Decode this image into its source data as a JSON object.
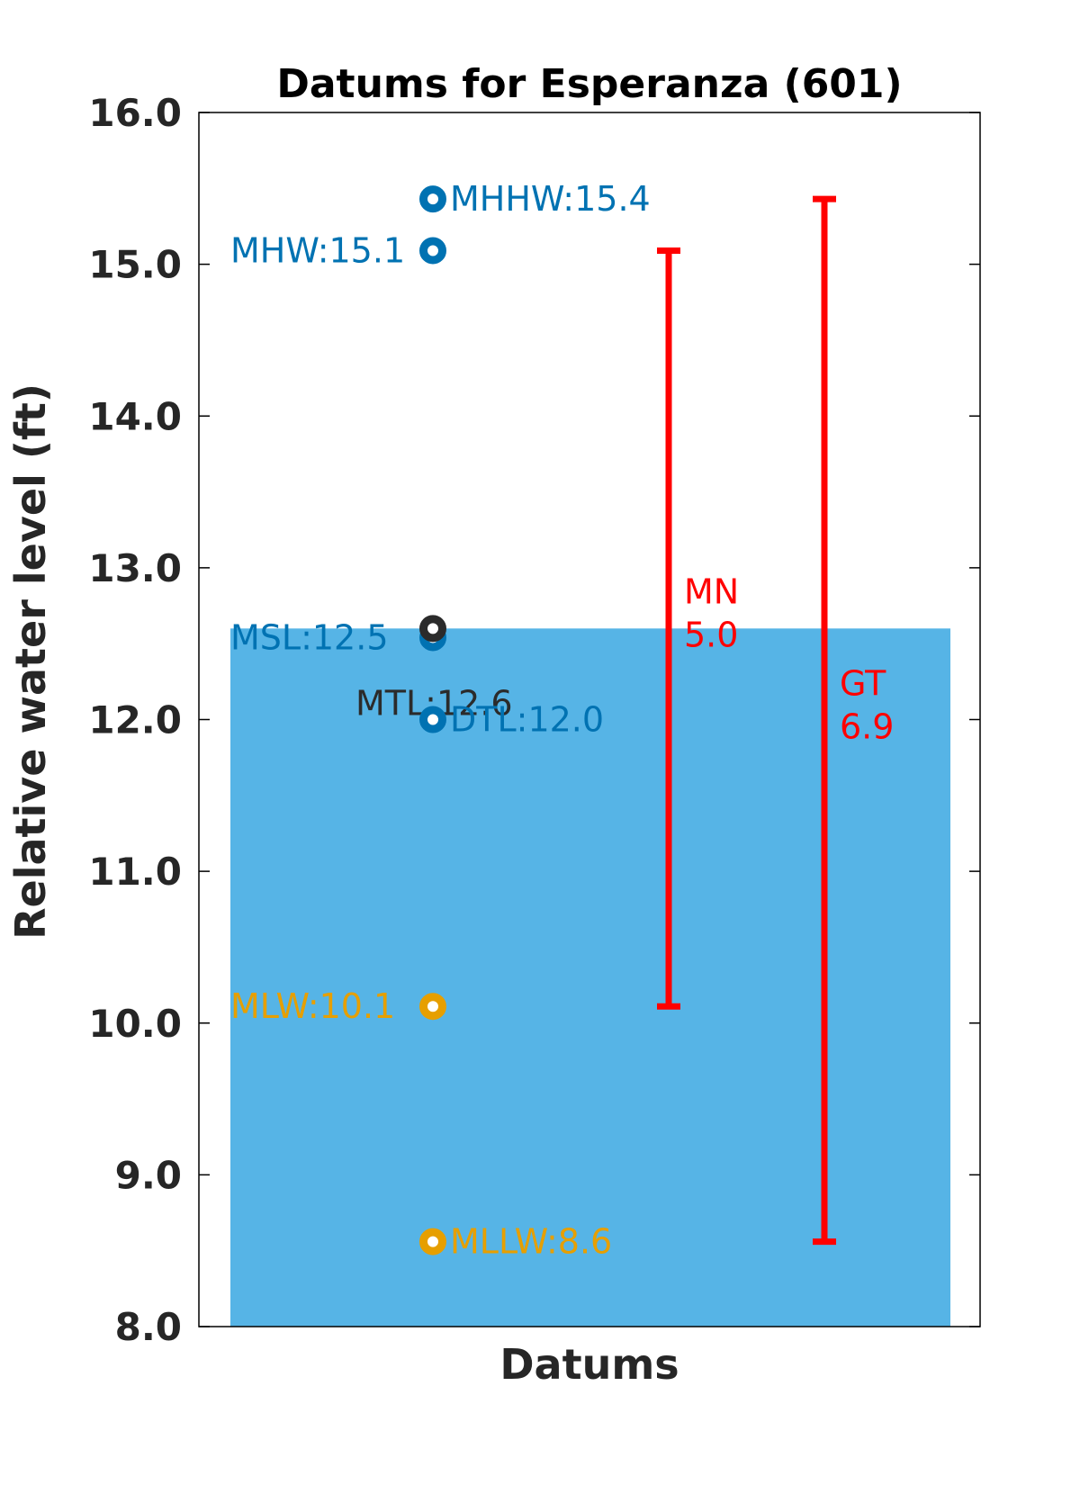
{
  "chart_data": {
    "type": "scatter",
    "title": "Datums for Esperanza (601)",
    "xlabel": "Datums",
    "ylabel": "Relative water level (ft)",
    "ylim": [
      8.0,
      16.0
    ],
    "yticks": [
      "8.0",
      "9.0",
      "10.0",
      "11.0",
      "12.0",
      "13.0",
      "14.0",
      "15.0",
      "16.0"
    ],
    "fill_level": 12.6,
    "colors": {
      "fill": "#56b4e6",
      "high": "#0072b2",
      "low": "#e69f00",
      "mid": "#2b2b2b",
      "range": "#ff0000",
      "frame": "#000000"
    },
    "datums": [
      {
        "label": "MHHW:15.4",
        "value": 15.43,
        "group": "high",
        "label_side": "right"
      },
      {
        "label": "MHW:15.1",
        "value": 15.09,
        "group": "high",
        "label_side": "left"
      },
      {
        "label": "MSL:12.5",
        "value": 12.54,
        "group": "high",
        "label_side": "left"
      },
      {
        "label": "MTL:12.6",
        "value": 12.6,
        "group": "mid",
        "label_side": "below"
      },
      {
        "label": "DTL:12.0",
        "value": 12.0,
        "group": "high",
        "label_side": "right"
      },
      {
        "label": "MLW:10.1",
        "value": 10.11,
        "group": "low",
        "label_side": "left"
      },
      {
        "label": "MLLW:8.6",
        "value": 8.56,
        "group": "low",
        "label_side": "right"
      }
    ],
    "ranges": [
      {
        "name": "MN",
        "value_text": "5.0",
        "low": 10.11,
        "high": 15.09
      },
      {
        "name": "GT",
        "value_text": "6.9",
        "low": 8.56,
        "high": 15.43
      }
    ]
  }
}
